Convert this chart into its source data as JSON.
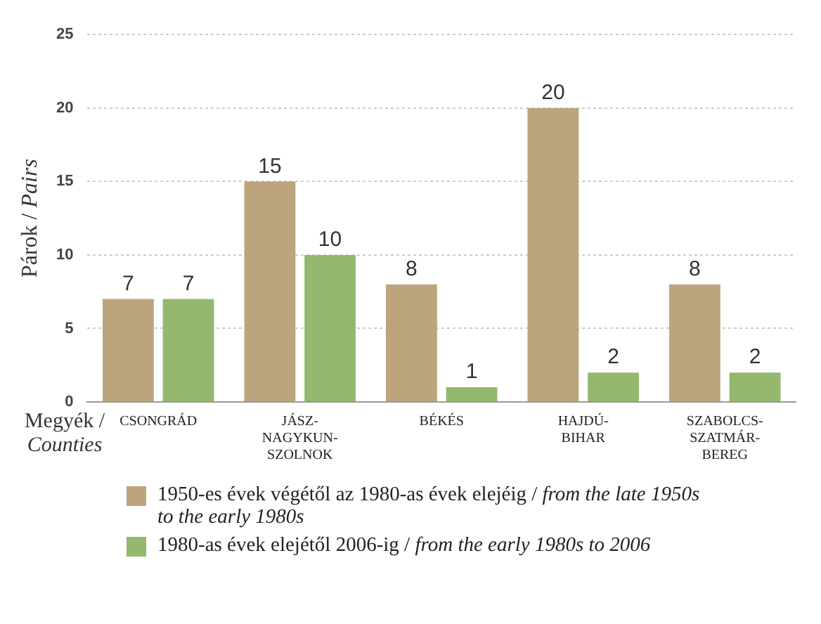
{
  "chart_data": {
    "type": "bar",
    "ylabel": "Párok / Pairs",
    "xlabel": "Megyék / Counties",
    "categories": [
      "CSONGRÁD",
      "JÁSZ-NAGYKUN-SZOLNOK",
      "BÉKÉS",
      "HAJDÚ-BIHAR",
      "SZABOLCS-SZATMÁR-BEREG"
    ],
    "series": [
      {
        "name": "1950-es évek végétől az 1980-as évek elejéig / from the late 1950s to the early 1980s",
        "color": "#bca57c",
        "values": [
          7,
          15,
          8,
          20,
          8
        ]
      },
      {
        "name": "1980-as évek elejétől 2006-ig / from the early 1980s to 2006",
        "color": "#93b86e",
        "values": [
          7,
          10,
          1,
          2,
          2
        ]
      }
    ],
    "ylim": [
      0,
      25
    ],
    "yticks": [
      0,
      5,
      10,
      15,
      20,
      25
    ],
    "grid": "y",
    "data_labels": true,
    "legend": "bottom"
  }
}
